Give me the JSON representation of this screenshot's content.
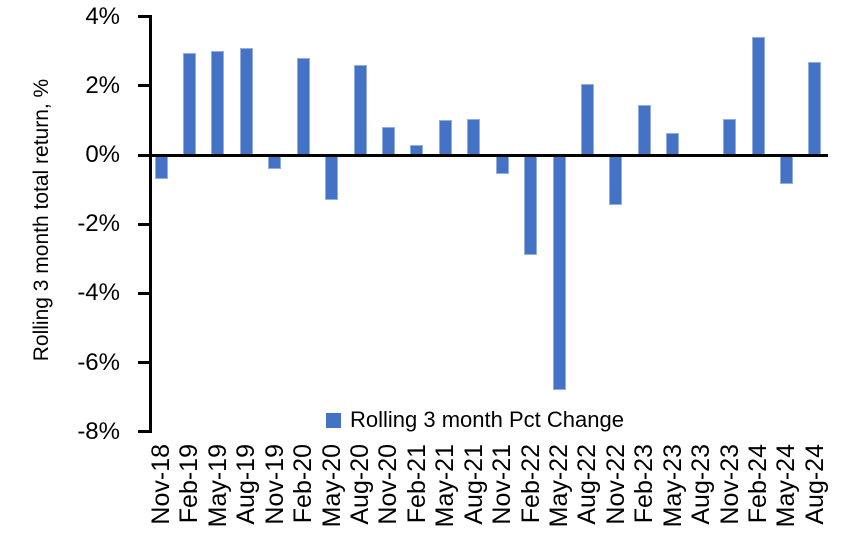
{
  "chart_data": {
    "type": "bar",
    "title": "",
    "ylabel": "Rolling 3 month total return, %",
    "xlabel": "",
    "categories": [
      "Nov-18",
      "Feb-19",
      "May-19",
      "Aug-19",
      "Nov-19",
      "Feb-20",
      "May-20",
      "Aug-20",
      "Nov-20",
      "Feb-21",
      "May-21",
      "Aug-21",
      "Nov-21",
      "Feb-22",
      "May-22",
      "Aug-22",
      "Nov-22",
      "Feb-23",
      "May-23",
      "Aug-23",
      "Nov-23",
      "Feb-24",
      "May-24",
      "Aug-24"
    ],
    "series": [
      {
        "name": "Rolling 3 month Pct Change",
        "values": [
          -0.7,
          2.95,
          3.0,
          3.1,
          -0.4,
          2.8,
          -1.3,
          2.6,
          0.8,
          0.3,
          1.0,
          1.05,
          -0.55,
          -2.9,
          -6.8,
          2.05,
          -1.45,
          1.45,
          0.65,
          0.0,
          1.05,
          3.4,
          -0.85,
          2.7
        ]
      }
    ],
    "ylim": [
      -8,
      4
    ],
    "yticks": [
      4,
      2,
      0,
      -2,
      -4,
      -6,
      -8
    ],
    "ytick_labels": [
      "4%",
      "2%",
      "0%",
      "-2%",
      "-4%",
      "-6%",
      "-8%"
    ],
    "grid": false,
    "legend_position": "inside-bottom-center",
    "colors": {
      "bar_fill": "#4472C4",
      "bar_edge": "#93ADDE",
      "axis": "#000000",
      "text": "#000000",
      "background": "#FFFFFF"
    }
  }
}
